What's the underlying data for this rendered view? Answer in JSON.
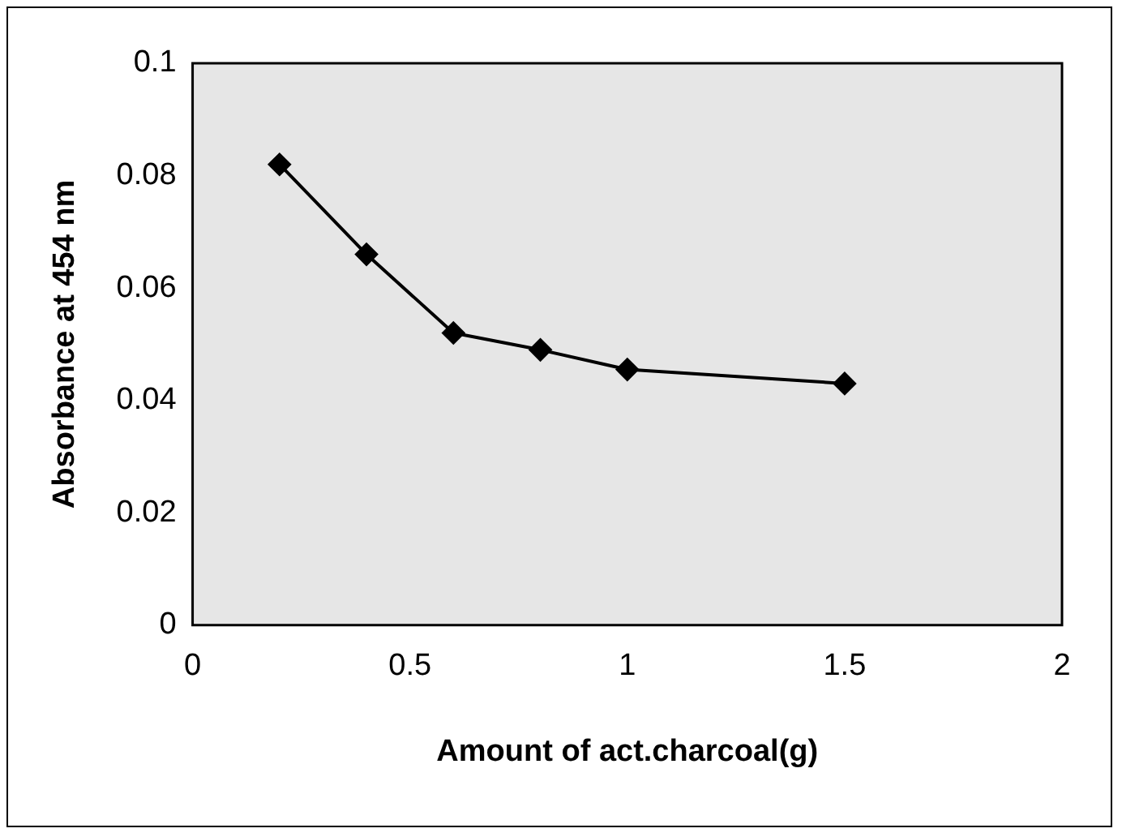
{
  "chart_data": {
    "type": "line",
    "xlabel": "Amount of act.charcoal(g)",
    "ylabel": "Absorbance at 454 nm",
    "x": [
      0.2,
      0.4,
      0.6,
      0.8,
      1.0,
      1.5
    ],
    "series": [
      {
        "color": "#000000",
        "values": [
          0.082,
          0.066,
          0.052,
          0.049,
          0.0455,
          0.043
        ]
      }
    ],
    "xlim": [
      0,
      2
    ],
    "xticks": [
      0,
      0.5,
      1,
      1.5,
      2
    ],
    "ylim": [
      0,
      0.1
    ],
    "yticks": [
      0,
      0.02,
      0.04,
      0.06,
      0.08,
      0.1
    ],
    "grid": false,
    "legend": false,
    "marker": "diamond",
    "line_style": "solid"
  }
}
